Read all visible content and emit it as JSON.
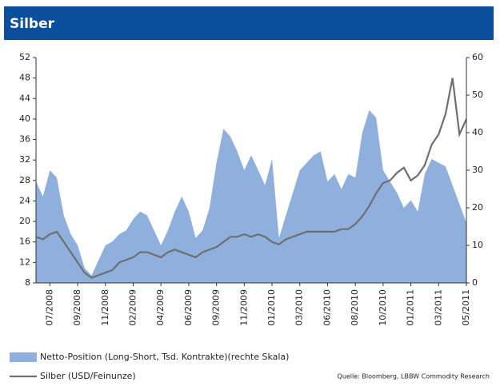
{
  "chart_data": {
    "type": "line",
    "title": "Silber",
    "source": "Quelle: Bloomberg, LBBW Commodity Research",
    "legend": "bottom",
    "grid": false,
    "categories": [
      null,
      null,
      "07/2008",
      null,
      null,
      null,
      "09/2008",
      null,
      null,
      null,
      "11/2008",
      null,
      null,
      null,
      "02/2009",
      null,
      null,
      null,
      "04/2009",
      null,
      null,
      null,
      "06/2009",
      null,
      null,
      null,
      "09/2009",
      null,
      null,
      null,
      "11/2009",
      null,
      null,
      null,
      "01/2010",
      null,
      null,
      null,
      "03/2010",
      null,
      null,
      null,
      "06/2010",
      null,
      null,
      null,
      "08/2010",
      null,
      null,
      null,
      "10/2010",
      null,
      null,
      null,
      "01/2011",
      null,
      null,
      null,
      "03/2011",
      null,
      null,
      null,
      "05/2011"
    ],
    "ylim": [
      8,
      52
    ],
    "yticks": [
      8,
      12,
      16,
      20,
      24,
      28,
      32,
      36,
      40,
      44,
      48,
      52
    ],
    "y2lim": [
      0,
      60
    ],
    "y2ticks": [
      0,
      10,
      20,
      30,
      40,
      50,
      60
    ],
    "series": [
      {
        "name": "Netto-Position (Long-Short, Tsd. Kontrakte)(rechte Skala)",
        "type": "area",
        "axis": "y2",
        "color": "#8fb0dc",
        "values": [
          27,
          23,
          30,
          28,
          18,
          13,
          10,
          4,
          2,
          6,
          10,
          11,
          13,
          14,
          17,
          19,
          18,
          14,
          10,
          14,
          19,
          23,
          19,
          12,
          14,
          20,
          32,
          41,
          39,
          35,
          30,
          34,
          30,
          26,
          33,
          12,
          18,
          24,
          30,
          32,
          34,
          35,
          27,
          29,
          25,
          29,
          28,
          40,
          46,
          44,
          30,
          27,
          24,
          20,
          22,
          19,
          29,
          33,
          32,
          31,
          26,
          21,
          16
        ]
      },
      {
        "name": "Silber (USD/Feinunze)",
        "type": "line",
        "color": "#6f6f6f",
        "values": [
          17,
          16.5,
          17.5,
          18,
          16,
          14,
          12,
          10,
          9,
          9.5,
          10,
          10.5,
          12,
          12.5,
          13,
          14,
          14,
          13.5,
          13,
          14,
          14.5,
          14,
          13.5,
          13,
          14,
          14.5,
          15,
          16,
          17,
          17,
          17.5,
          17,
          17.5,
          17,
          16,
          15.5,
          16.5,
          17,
          17.5,
          18,
          18,
          18,
          18,
          18,
          18.5,
          18.5,
          19.5,
          21,
          23,
          25.5,
          27.5,
          28,
          29.5,
          30.5,
          28,
          29,
          31,
          35,
          37,
          41,
          48,
          37,
          40
        ]
      }
    ]
  }
}
